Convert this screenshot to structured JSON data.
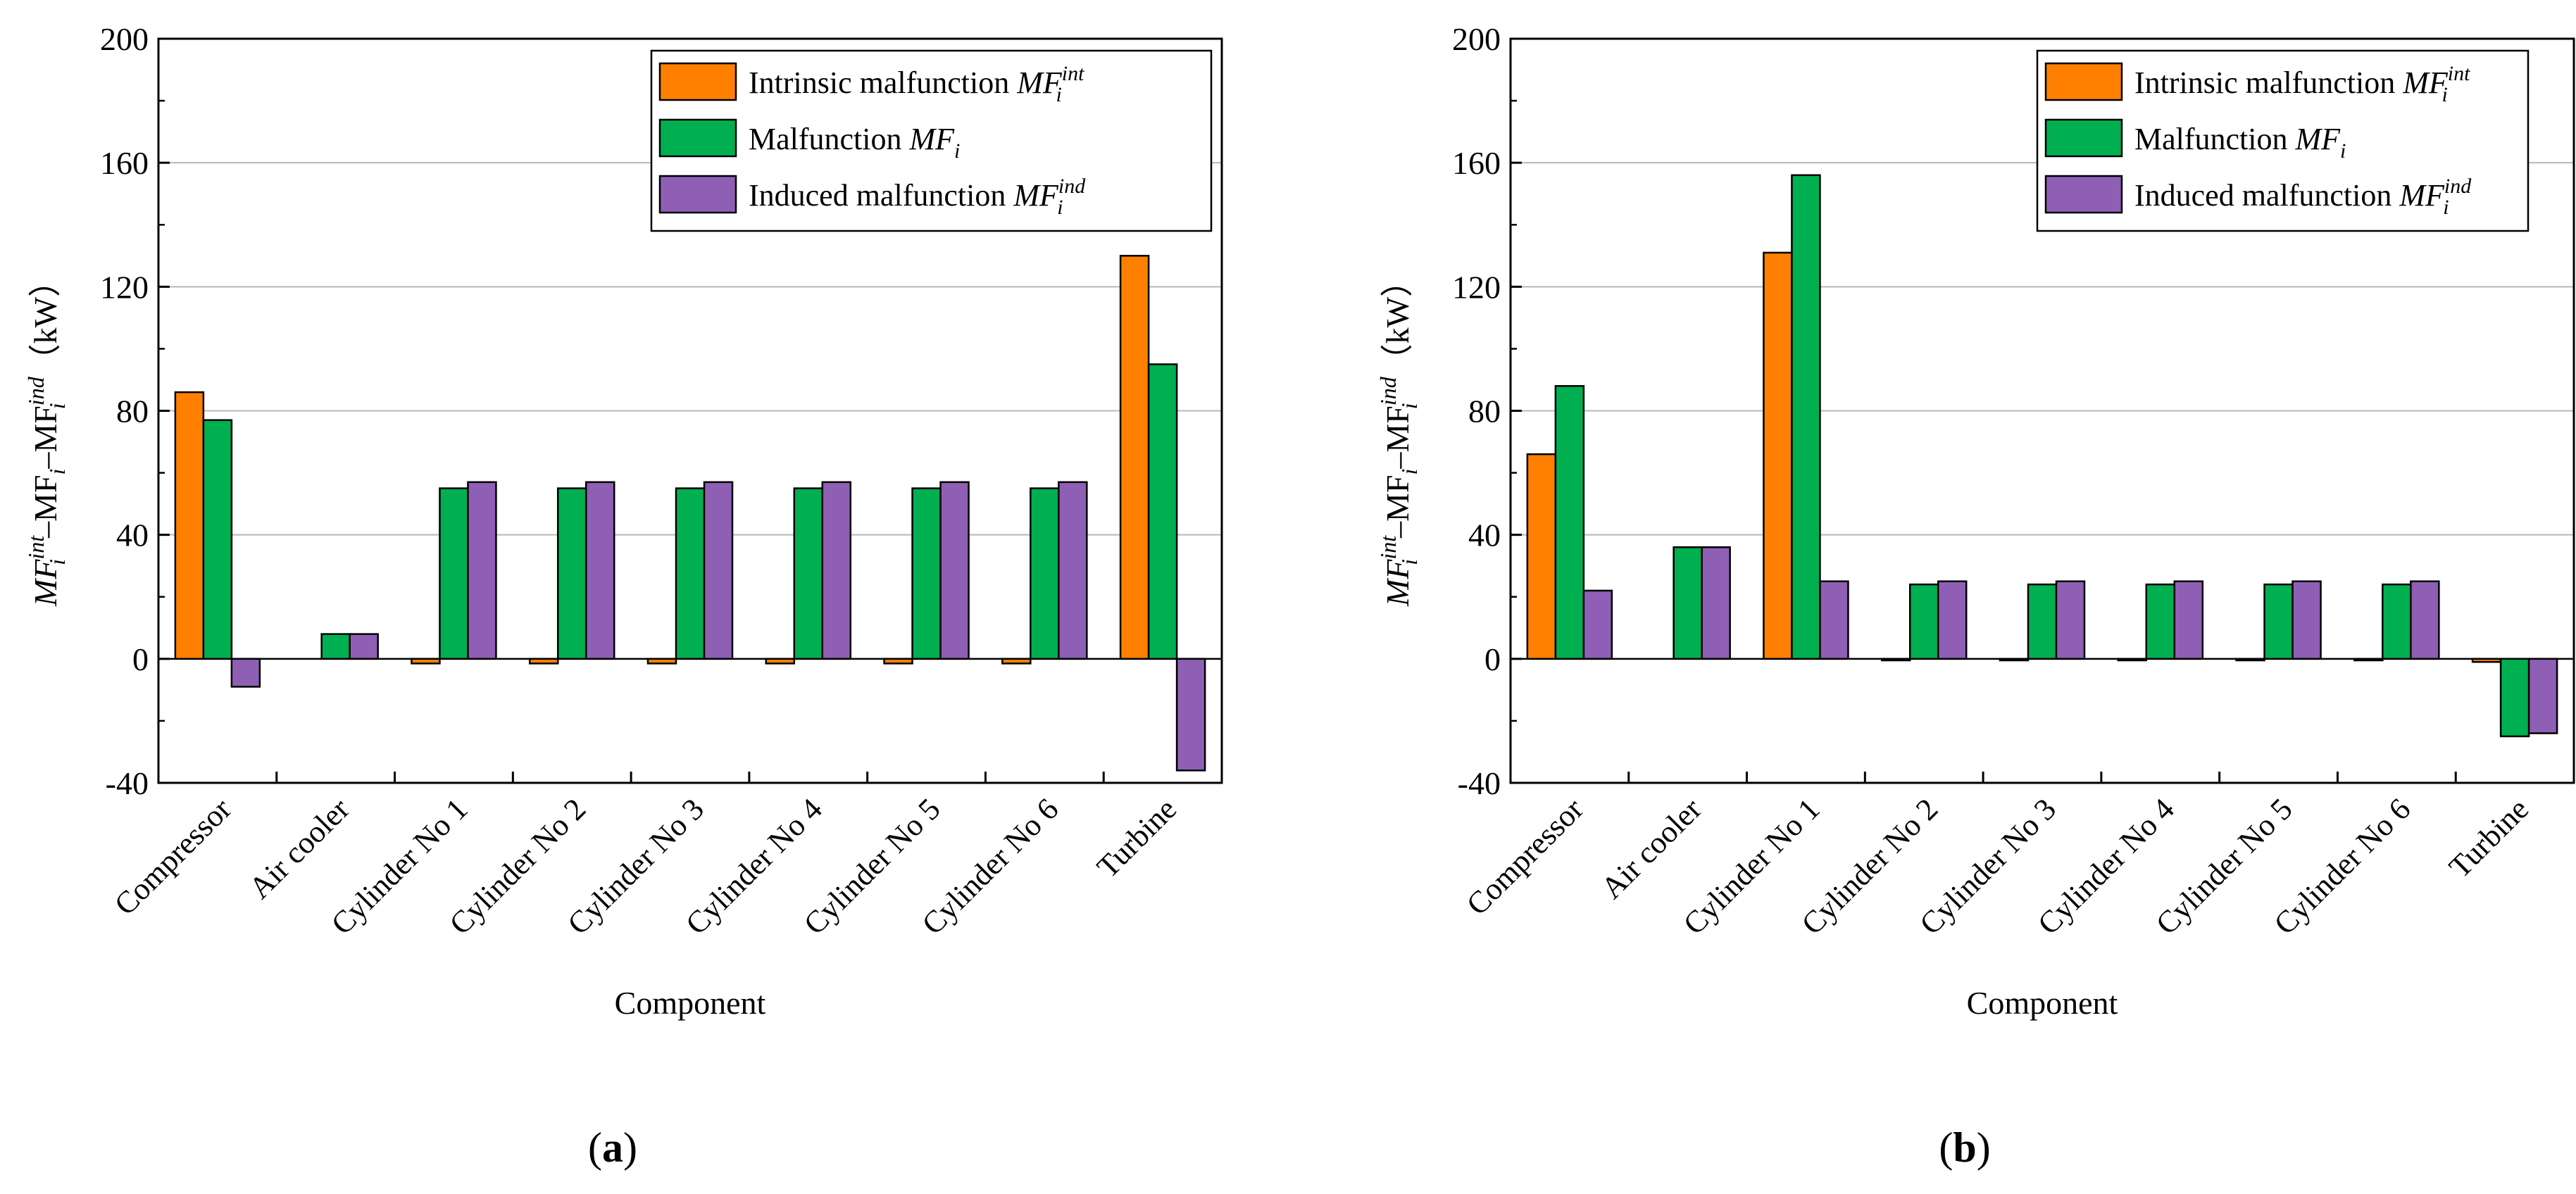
{
  "chart_data": [
    {
      "type": "bar",
      "panel_label": "a",
      "categories": [
        "Compressor",
        "Air cooler",
        "Cylinder No 1",
        "Cylinder No 2",
        "Cylinder No 3",
        "Cylinder No 4",
        "Cylinder No 5",
        "Cylinder No 6",
        "Turbine"
      ],
      "series": [
        {
          "name": "Intrinsic malfunction",
          "symbol": "MF",
          "sub": "i",
          "sup": "int",
          "color": "#ff8000",
          "values": [
            86,
            0,
            -1.5,
            -1.5,
            -1.5,
            -1.5,
            -1.5,
            -1.5,
            130
          ]
        },
        {
          "name": "Malfunction",
          "symbol": "MF",
          "sub": "i",
          "sup": "",
          "color": "#00b050",
          "values": [
            77,
            8,
            55,
            55,
            55,
            55,
            55,
            55,
            95
          ]
        },
        {
          "name": "Induced malfunction",
          "symbol": "MF",
          "sub": "i",
          "sup": "ind",
          "color": "#8e5fb5",
          "values": [
            -9,
            8,
            57,
            57,
            57,
            57,
            57,
            57,
            -36
          ]
        }
      ],
      "xlabel": "Component",
      "ylabel": "MF_i^int–MF_i–MF_i^ind（kW）",
      "ylabel_parts": {
        "sym": "MF",
        "sub": "i",
        "sup1": "int",
        "sup3": "ind",
        "dash": "–",
        "unit": "（kW）"
      },
      "ylim": [
        -40,
        200
      ],
      "yticks": [
        -40,
        0,
        40,
        80,
        120,
        160,
        200
      ],
      "grid": true,
      "legend_position": "top-right"
    },
    {
      "type": "bar",
      "panel_label": "b",
      "categories": [
        "Compressor",
        "Air cooler",
        "Cylinder No 1",
        "Cylinder No 2",
        "Cylinder No 3",
        "Cylinder No 4",
        "Cylinder No 5",
        "Cylinder No 6",
        "Turbine"
      ],
      "series": [
        {
          "name": "Intrinsic malfunction",
          "symbol": "MF",
          "sub": "i",
          "sup": "int",
          "color": "#ff8000",
          "values": [
            66,
            0,
            131,
            -0.5,
            -0.5,
            -0.5,
            -0.5,
            -0.5,
            -1
          ]
        },
        {
          "name": "Malfunction",
          "symbol": "MF",
          "sub": "i",
          "sup": "",
          "color": "#00b050",
          "values": [
            88,
            36,
            156,
            24,
            24,
            24,
            24,
            24,
            -25
          ]
        },
        {
          "name": "Induced malfunction",
          "symbol": "MF",
          "sub": "i",
          "sup": "ind",
          "color": "#8e5fb5",
          "values": [
            22,
            36,
            25,
            25,
            25,
            25,
            25,
            25,
            -24
          ]
        }
      ],
      "xlabel": "Component",
      "ylabel": "MF_i^int–MF_i–MF_i^ind（kW）",
      "ylabel_parts": {
        "sym": "MF",
        "sub": "i",
        "sup1": "int",
        "sup3": "ind",
        "dash": "–",
        "unit": "（kW）"
      },
      "ylim": [
        -40,
        200
      ],
      "yticks": [
        -40,
        0,
        40,
        80,
        120,
        160,
        200
      ],
      "grid": true,
      "legend_position": "top-right"
    }
  ]
}
